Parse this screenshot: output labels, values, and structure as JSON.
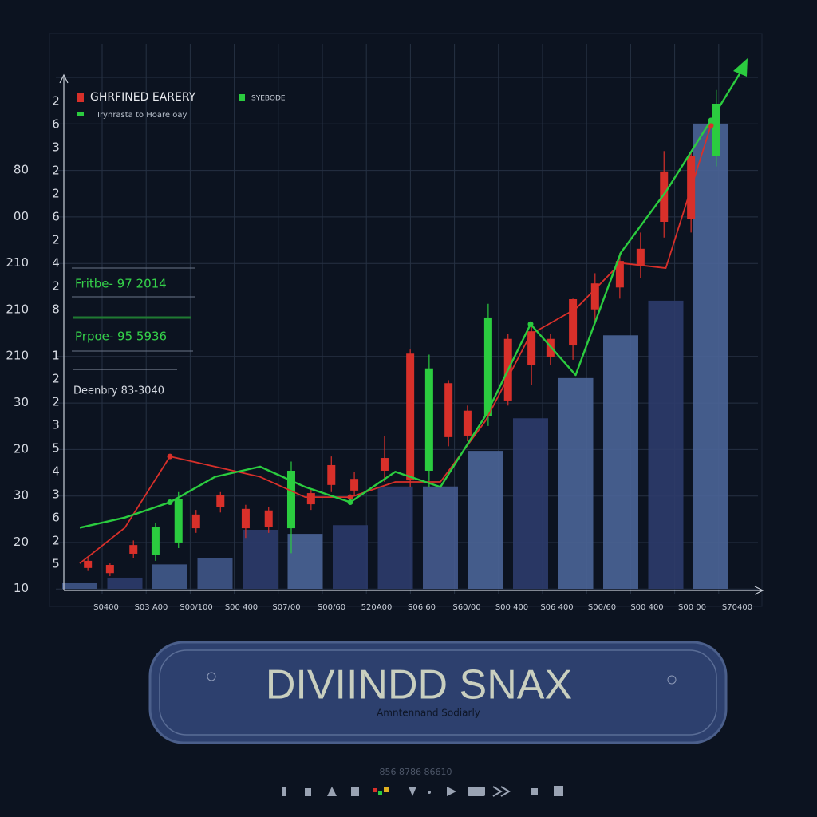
{
  "chart_data": {
    "type": "combo",
    "grid": true,
    "ylim": [
      0,
      100
    ],
    "categories": [
      "S0400",
      "S03 A00",
      "S00/100",
      "S00 400",
      "S07/00",
      "S00/60",
      "520A00",
      "S06 60",
      "S60/00",
      "S00 400",
      "S06 400",
      "S00/60",
      "S00 400",
      "S00 00",
      "S70400"
    ],
    "y_labels_outer": [
      "80",
      "00",
      "210",
      "210",
      "210",
      "30",
      "20",
      "30",
      "20",
      "10"
    ],
    "y_labels_inner": [
      "2",
      "6",
      "3",
      "2",
      "2",
      "6",
      "2",
      "4",
      "2",
      "8",
      null,
      "1",
      "2",
      "2",
      "3",
      "5",
      "4",
      "3",
      "6",
      "2",
      "5"
    ],
    "bars": {
      "values": [
        1.1,
        2.2,
        4.8,
        6,
        11.6,
        10.8,
        12.5,
        20.1,
        20.1,
        27.1,
        33.5,
        41.4,
        49.8,
        56.6,
        91.4
      ],
      "colors": [
        "#3f5585",
        "#2c3b6a",
        "#41598a",
        "#3f5585",
        "#2c3b6a",
        "#4a6395",
        "#2a3868",
        "#2c3b6a",
        "#44598c",
        "#4a6395",
        "#2c3b6a",
        "#4a6395",
        "#4a6395",
        "#2c3b6a",
        "#4a6395"
      ]
    },
    "series": [
      {
        "name": "GHRFINED EARERY",
        "color": "#d8302a",
        "values": [
          5,
          12,
          26,
          24,
          22,
          18,
          18,
          21,
          21,
          33,
          50,
          55,
          64,
          63,
          91
        ]
      },
      {
        "name": "SYEBODE",
        "color": "#2bcc3f",
        "values": [
          12,
          14,
          17,
          22,
          24,
          20,
          17,
          23,
          20,
          34,
          52,
          42,
          66,
          78,
          92
        ]
      }
    ],
    "legend_note": "Irynrasta to Hoare oay",
    "candles": {
      "up_color": "#2bcc3f",
      "down_color": "#d8302a",
      "x": [
        0.18,
        0.67,
        1.19,
        1.68,
        2.19,
        2.58,
        3.12,
        3.68,
        4.19,
        4.69,
        5.13,
        5.58,
        6.09,
        6.76,
        7.33,
        7.75,
        8.18,
        8.6,
        9.06,
        9.5,
        10.02,
        10.44,
        10.94,
        11.43,
        11.98,
        12.44,
        12.96,
        13.56,
        14.12
      ],
      "open": [
        5.5,
        4.7,
        8.6,
        6.7,
        9.1,
        14.6,
        18.5,
        15.7,
        15.4,
        11.9,
        18.8,
        24.3,
        21.6,
        25.7,
        46.2,
        23.2,
        40.4,
        35,
        33.9,
        49.1,
        50.6,
        49.1,
        56.9,
        60,
        64.4,
        66.8,
        82,
        85.1,
        85.1
      ],
      "close": [
        4.1,
        3.1,
        6.9,
        12.2,
        17.7,
        11.9,
        16,
        11.9,
        12.2,
        23.2,
        16.6,
        20.4,
        19.3,
        23.2,
        21.3,
        43.3,
        29.8,
        30.1,
        53.3,
        37,
        44,
        45.5,
        47.8,
        54.9,
        59.2,
        63.5,
        72.1,
        72.6,
        95.3
      ],
      "high": [
        6,
        5,
        9.5,
        13,
        19,
        15.5,
        19,
        16.5,
        16,
        25,
        19.5,
        26,
        23,
        30,
        47,
        46,
        41,
        36,
        56,
        50,
        52,
        50,
        57,
        62,
        66,
        70,
        86,
        86,
        98
      ],
      "low": [
        3.5,
        2.5,
        6,
        5.5,
        8,
        11,
        15,
        10,
        11,
        7,
        15.5,
        19,
        18.5,
        21,
        20,
        20,
        28,
        29,
        32,
        36,
        40,
        44,
        45,
        52,
        57,
        61,
        69,
        70,
        83
      ]
    },
    "annotations": [
      "Fritbe- 97 2014",
      "Prpoe- 95 5936",
      "Deenbry 83-3040"
    ]
  },
  "banner": {
    "title": "DIVIINDD SNAX",
    "subtitle": "Amntennand Sodiarly"
  },
  "footer": "856 8786 86610"
}
